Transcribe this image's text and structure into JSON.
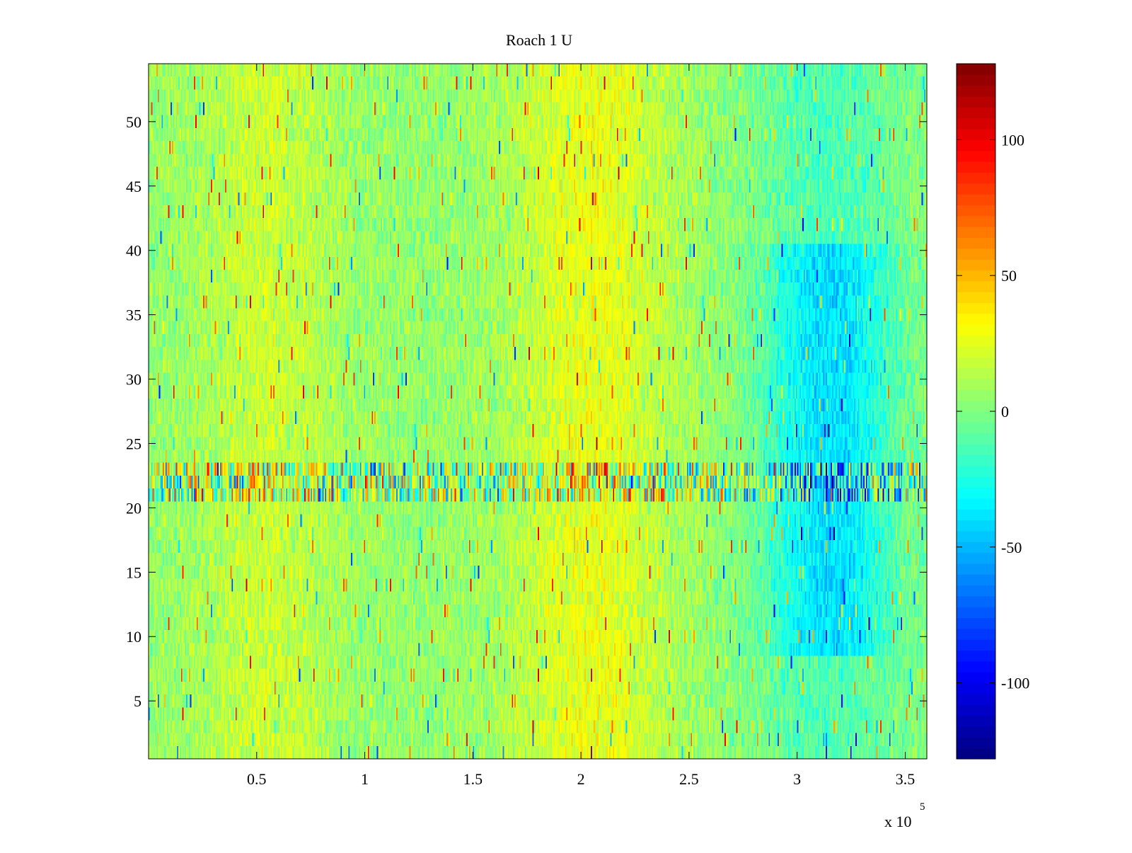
{
  "chart_data": {
    "type": "heatmap",
    "title": "Roach 1 U",
    "xlabel": "",
    "ylabel": "",
    "x_exponent_label": "x 10",
    "x_exponent": "5",
    "xlim": [
      0,
      360000
    ],
    "ylim": [
      0.5,
      54.5
    ],
    "x_ticks": [
      50000,
      100000,
      150000,
      200000,
      250000,
      300000,
      350000
    ],
    "x_tick_labels": [
      "0.5",
      "1",
      "1.5",
      "2",
      "2.5",
      "3",
      "3.5"
    ],
    "y_ticks": [
      5,
      10,
      15,
      20,
      25,
      30,
      35,
      40,
      45,
      50
    ],
    "y_tick_labels": [
      "5",
      "10",
      "15",
      "20",
      "25",
      "30",
      "35",
      "40",
      "45",
      "50"
    ],
    "rows": 54,
    "colormap": "jet",
    "clim": [
      -128,
      128
    ],
    "colorbar": {
      "ticks": [
        -100,
        -50,
        0,
        50,
        100
      ],
      "tick_labels": [
        "-100",
        "-50",
        "0",
        "50",
        "100"
      ],
      "placement": "right"
    },
    "features": [
      {
        "description": "high-variance noisy band",
        "y_range": [
          20.5,
          23.5
        ]
      },
      {
        "description": "warm (positive) region",
        "x_range": [
          170000,
          240000
        ]
      },
      {
        "description": "cool (negative) region",
        "x_range": [
          280000,
          350000
        ],
        "y_range": [
          9,
          40
        ]
      }
    ]
  }
}
